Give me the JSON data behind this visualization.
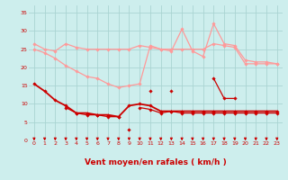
{
  "x": [
    0,
    1,
    2,
    3,
    4,
    5,
    6,
    7,
    8,
    9,
    10,
    11,
    12,
    13,
    14,
    15,
    16,
    17,
    18,
    19,
    20,
    21,
    22,
    23
  ],
  "bg_color": "#cdeeed",
  "grid_color": "#aad4d2",
  "xlabel": "Vent moyen/en rafales ( km/h )",
  "xlabel_color": "#cc0000",
  "xlabel_fontsize": 6.5,
  "tick_color": "#cc0000",
  "tick_fontsize": 4.5,
  "ylim": [
    0,
    37
  ],
  "xlim": [
    -0.5,
    23.5
  ],
  "yticks": [
    0,
    5,
    10,
    15,
    20,
    25,
    30,
    35
  ],
  "series": [
    {
      "color": "#ff9999",
      "linewidth": 0.9,
      "marker": "D",
      "markersize": 1.8,
      "values": [
        26.5,
        25.0,
        24.5,
        26.5,
        25.5,
        25.0,
        25.0,
        25.0,
        25.0,
        25.0,
        26.0,
        25.5,
        25.0,
        25.0,
        25.0,
        25.0,
        25.0,
        26.5,
        26.0,
        25.5,
        21.0,
        21.0,
        21.0,
        21.0
      ]
    },
    {
      "color": "#ff9999",
      "linewidth": 0.9,
      "marker": "D",
      "markersize": 1.8,
      "values": [
        25.0,
        24.0,
        22.5,
        20.5,
        19.0,
        17.5,
        17.0,
        15.5,
        14.5,
        15.0,
        15.5,
        26.0,
        25.0,
        24.5,
        30.5,
        24.5,
        23.0,
        32.0,
        26.5,
        26.0,
        22.0,
        21.5,
        21.5,
        21.0
      ]
    },
    {
      "color": "#cc0000",
      "linewidth": 1.3,
      "marker": "D",
      "markersize": 1.8,
      "values": [
        15.5,
        13.5,
        11.0,
        9.5,
        7.5,
        7.5,
        7.0,
        7.0,
        6.5,
        9.5,
        10.0,
        9.5,
        8.0,
        8.0,
        8.0,
        8.0,
        8.0,
        8.0,
        8.0,
        8.0,
        8.0,
        8.0,
        8.0,
        8.0
      ]
    },
    {
      "color": "#cc0000",
      "linewidth": 0.9,
      "marker": "D",
      "markersize": 1.8,
      "values": [
        null,
        null,
        null,
        9.0,
        7.5,
        7.0,
        7.0,
        6.5,
        6.5,
        null,
        9.0,
        8.5,
        7.5,
        8.0,
        7.5,
        7.5,
        7.5,
        7.5,
        7.5,
        7.5,
        7.5,
        7.5,
        7.5,
        7.5
      ]
    },
    {
      "color": "#cc0000",
      "linewidth": 0.9,
      "marker": "D",
      "markersize": 1.8,
      "values": [
        null,
        null,
        null,
        null,
        null,
        null,
        null,
        null,
        null,
        null,
        null,
        13.5,
        null,
        13.5,
        null,
        null,
        null,
        17.0,
        11.5,
        11.5,
        null,
        null,
        null,
        null
      ]
    },
    {
      "color": "#cc0000",
      "linewidth": 0.9,
      "marker": "D",
      "markersize": 1.8,
      "values": [
        null,
        null,
        null,
        null,
        null,
        null,
        null,
        null,
        null,
        3.0,
        null,
        null,
        null,
        null,
        null,
        null,
        null,
        null,
        null,
        null,
        null,
        null,
        null,
        null
      ]
    }
  ],
  "arrow_color": "#cc0000"
}
